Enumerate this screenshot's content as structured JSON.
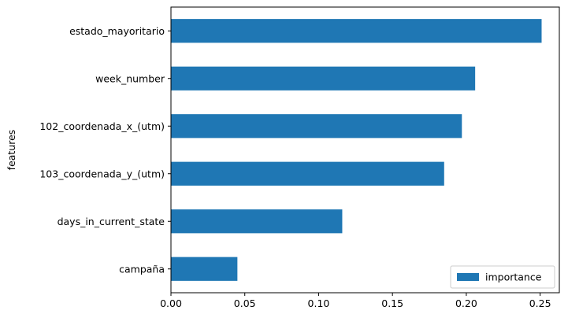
{
  "chart_data": {
    "type": "bar",
    "orientation": "horizontal",
    "categories": [
      "estado_mayoritario",
      "week_number",
      "102_coordenada_x_(utm)",
      "103_coordenada_y_(utm)",
      "days_in_current_state",
      "campaña"
    ],
    "series": [
      {
        "name": "importance",
        "values": [
          0.251,
          0.206,
          0.197,
          0.185,
          0.116,
          0.045
        ]
      }
    ],
    "title": "",
    "xlabel": "",
    "ylabel": "features",
    "xlim": [
      0.0,
      0.263
    ],
    "xticks": [
      0.0,
      0.05,
      0.1,
      0.15,
      0.2,
      0.25
    ],
    "xtick_labels": [
      "0.00",
      "0.05",
      "0.10",
      "0.15",
      "0.20",
      "0.25"
    ],
    "grid": false,
    "legend_position": "lower-right",
    "bar_color": "#1f77b4"
  }
}
